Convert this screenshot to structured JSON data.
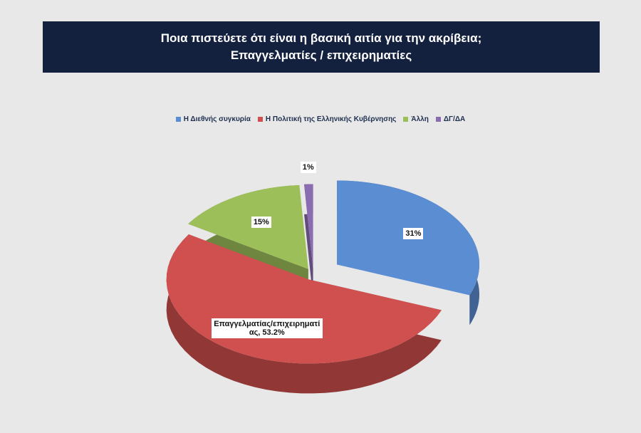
{
  "chart_data": {
    "type": "pie",
    "title": "Ποια πιστεύετε ότι  είναι η βασική αιτία για την ακρίβεια;",
    "subtitle": "Επαγγελματίες / επιχειρηματίες",
    "categories": [
      "Η Διεθνής συγκυρία",
      "Η Πολιτική της Ελληνικής Κυβέρνησης",
      "Άλλη",
      "ΔΓ/ΔΑ"
    ],
    "values": [
      31,
      53.2,
      15,
      1
    ],
    "value_labels": [
      "31%",
      "Επαγγελματίας/επιχειρηματίας, 53.2%",
      "15%",
      "1%"
    ],
    "colors": [
      "#5b8dd3",
      "#cf504e",
      "#9dbf5a",
      "#8a6cb0"
    ],
    "legend": "top"
  }
}
